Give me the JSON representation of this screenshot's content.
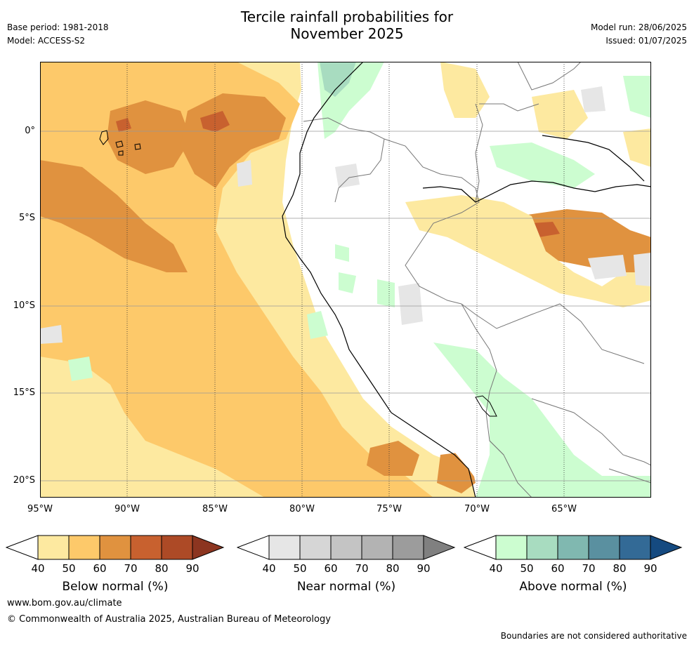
{
  "header": {
    "title_line1": "Tercile rainfall probabilities for",
    "title_line2": "November 2025",
    "base_period": "Base period: 1981-2018",
    "model": "Model: ACCESS-S2",
    "model_run": "Model run: 28/06/2025",
    "issued": "Issued: 01/07/2025"
  },
  "map": {
    "lat_labels": [
      "0°",
      "5°S",
      "10°S",
      "15°S",
      "20°S"
    ],
    "lon_labels": [
      "95°W",
      "90°W",
      "85°W",
      "80°W",
      "75°W",
      "70°W",
      "65°W"
    ],
    "colors": {
      "below": [
        "#fde9a0",
        "#fdc96a",
        "#e0923f",
        "#c8612f",
        "#ad4a26",
        "#8c3520"
      ],
      "near": [
        "#e6e6e6",
        "#d6d6d6",
        "#c4c4c4",
        "#b3b3b3",
        "#9c9c9c",
        "#808080"
      ],
      "above": [
        "#ccfdd0",
        "#a8dcc0",
        "#80b8b0",
        "#5a90a0",
        "#336a96",
        "#154a80"
      ]
    }
  },
  "colorbars": {
    "ticks": [
      "40",
      "50",
      "60",
      "70",
      "80",
      "90"
    ],
    "below_label": "Below normal (%)",
    "near_label": "Near normal (%)",
    "above_label": "Above normal (%)"
  },
  "footer": {
    "website": "www.bom.gov.au/climate",
    "copyright": "© Commonwealth of Australia 2025, Australian Bureau of Meteorology",
    "disclaimer": "Boundaries are not considered authoritative"
  }
}
